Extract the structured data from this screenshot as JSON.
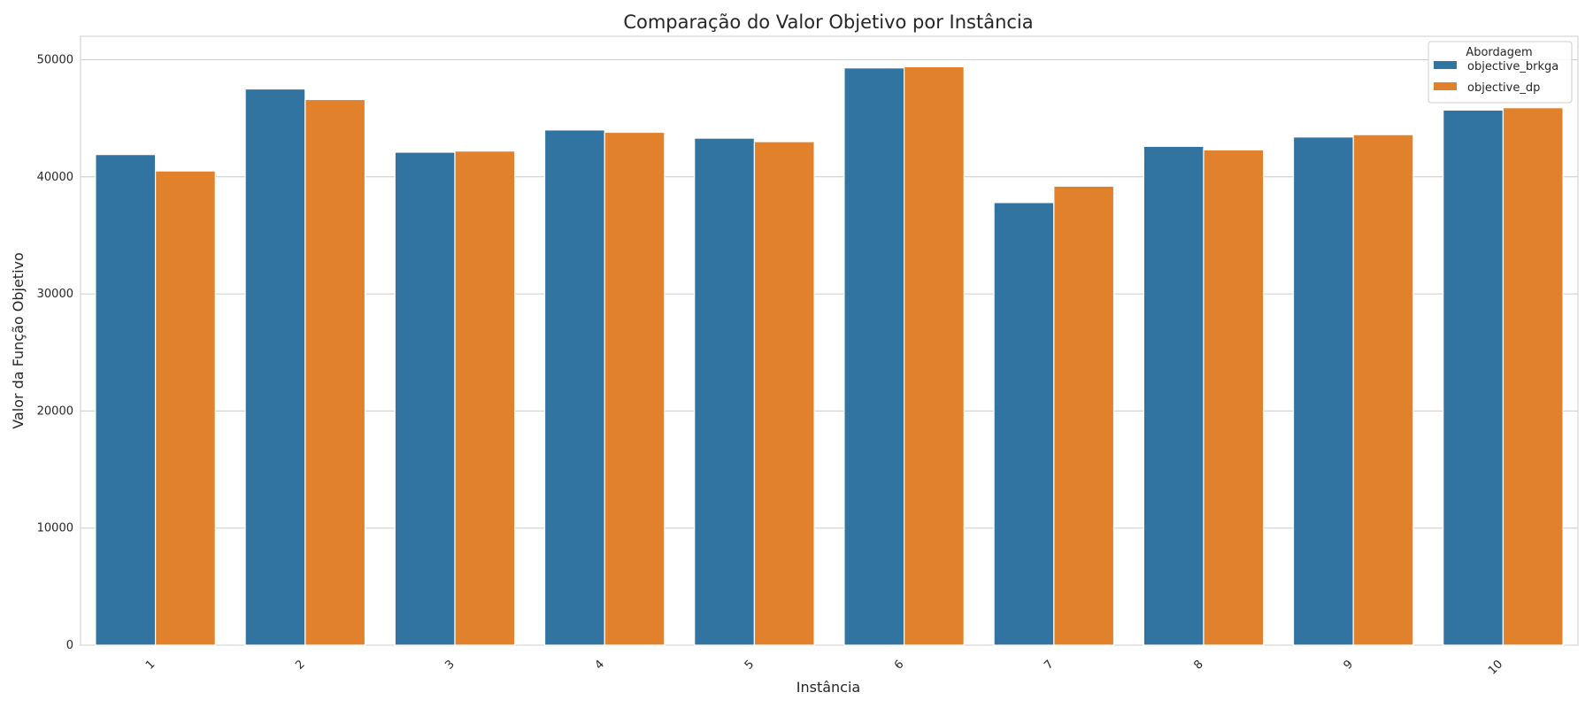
{
  "chart_data": {
    "type": "bar",
    "title": "Comparação do Valor Objetivo por Instância",
    "xlabel": "Instância",
    "ylabel": "Valor da Função Objetivo",
    "categories": [
      "1",
      "2",
      "3",
      "4",
      "5",
      "6",
      "7",
      "8",
      "9",
      "10"
    ],
    "series": [
      {
        "name": "objective_brkga",
        "color": "#3274a1",
        "values": [
          41900,
          47500,
          42100,
          44000,
          43300,
          49300,
          37800,
          42600,
          43400,
          45700
        ]
      },
      {
        "name": "objective_dp",
        "color": "#e1812c",
        "values": [
          40500,
          46600,
          42200,
          43800,
          43000,
          49400,
          39200,
          42300,
          43600,
          45900
        ]
      }
    ],
    "ylim": [
      0,
      52000
    ],
    "yticks": [
      0,
      10000,
      20000,
      30000,
      40000,
      50000
    ],
    "grid": true,
    "legend": {
      "title": "Abordagem",
      "position": "top-right"
    }
  }
}
